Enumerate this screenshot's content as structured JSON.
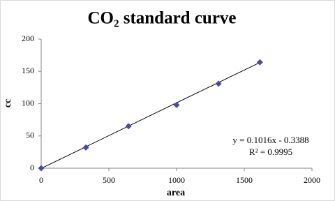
{
  "chart_data": {
    "type": "scatter",
    "title": "CO₂ standard curve",
    "x_label": "area",
    "y_label": "cc",
    "x": [
      0,
      330,
      645,
      1000,
      1310,
      1615
    ],
    "series": [
      {
        "name": "cc",
        "color": "#4b4b9b",
        "values": [
          0,
          32,
          65,
          98,
          131,
          164
        ]
      }
    ],
    "xlim": [
      0,
      2000
    ],
    "xticks": [
      0,
      500,
      1000,
      1500,
      2000
    ],
    "ylim": [
      0,
      200
    ],
    "yticks": [
      0,
      50,
      100,
      150,
      200
    ],
    "grid": false,
    "trendline": {
      "slope": 0.1016,
      "intercept": -0.3388,
      "equation": "y = 0.1016x - 0.3388",
      "r2": "R² = 0.9995"
    }
  }
}
